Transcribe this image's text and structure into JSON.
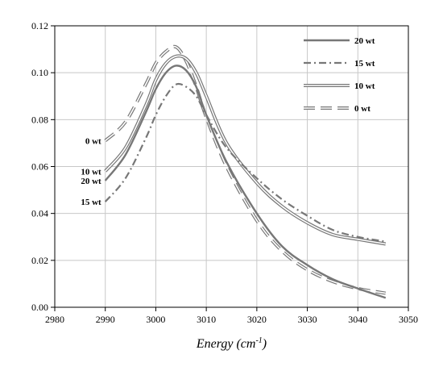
{
  "chart_data": {
    "type": "line",
    "title": "",
    "xlabel": "Energy (cm",
    "xlabel_sup": "-1",
    "xlabel_close": ")",
    "ylabel": "",
    "xlim": [
      2980,
      3050
    ],
    "ylim": [
      0,
      0.12
    ],
    "x_ticks": [
      2980,
      2990,
      3000,
      3010,
      3020,
      3030,
      3040,
      3050
    ],
    "x_tick_labels": [
      "2980",
      "2990",
      "3000",
      "3010",
      "3020",
      "3030",
      "3040",
      "3050"
    ],
    "y_ticks": [
      0,
      0.02,
      0.04,
      0.06,
      0.08,
      0.1,
      0.12
    ],
    "y_tick_labels": [
      "0.00",
      "0.02",
      "0.04",
      "0.06",
      "0.08",
      "0.10",
      "0.12"
    ],
    "grid": true,
    "legend_position": "top-right",
    "series": [
      {
        "name": "20 wt",
        "style": "solid",
        "color": "#777777",
        "curve_label": "20 wt",
        "x": [
          2990,
          2994,
          2998,
          3000,
          3002,
          3004,
          3006,
          3008,
          3010,
          3014,
          3020,
          3025,
          3030,
          3035,
          3040,
          3045.5
        ],
        "y": [
          0.054,
          0.065,
          0.083,
          0.093,
          0.1,
          0.103,
          0.101,
          0.094,
          0.082,
          0.062,
          0.04,
          0.026,
          0.018,
          0.012,
          0.008,
          0.004
        ]
      },
      {
        "name": "15 wt",
        "style": "dashdot",
        "color": "#777777",
        "curve_label": "15 wt",
        "x": [
          2990,
          2994,
          2998,
          3000,
          3002,
          3004,
          3006,
          3008,
          3010,
          3014,
          3020,
          3025,
          3030,
          3035,
          3040,
          3045.5
        ],
        "y": [
          0.045,
          0.055,
          0.072,
          0.082,
          0.09,
          0.095,
          0.094,
          0.09,
          0.082,
          0.068,
          0.055,
          0.046,
          0.039,
          0.033,
          0.03,
          0.028
        ]
      },
      {
        "name": "10 wt",
        "style": "double",
        "color": "#777777",
        "curve_label": "10 wt",
        "x": [
          2990,
          2994,
          2998,
          3000,
          3002,
          3004,
          3006,
          3008,
          3010,
          3014,
          3020,
          3025,
          3030,
          3035,
          3040,
          3045.5
        ],
        "y": [
          0.058,
          0.068,
          0.086,
          0.097,
          0.104,
          0.107,
          0.106,
          0.1,
          0.09,
          0.07,
          0.053,
          0.043,
          0.036,
          0.031,
          0.029,
          0.027
        ]
      },
      {
        "name": "0 wt",
        "style": "dashed",
        "color": "#777777",
        "curve_label": "0 wt",
        "x": [
          2990,
          2994,
          2998,
          3000,
          3002,
          3004,
          3006,
          3008,
          3010,
          3014,
          3020,
          3025,
          3030,
          3035,
          3040,
          3045.5
        ],
        "y": [
          0.071,
          0.079,
          0.095,
          0.104,
          0.109,
          0.111,
          0.105,
          0.094,
          0.081,
          0.06,
          0.037,
          0.024,
          0.016,
          0.011,
          0.008,
          0.006
        ]
      }
    ]
  }
}
